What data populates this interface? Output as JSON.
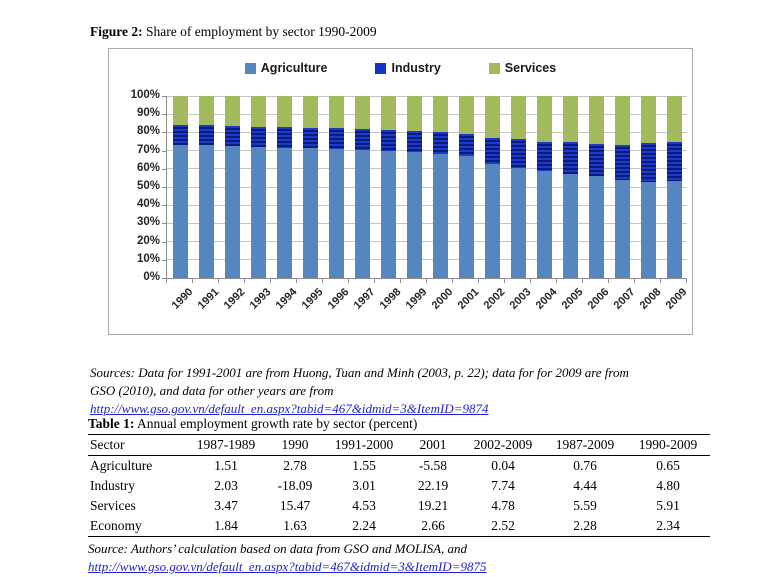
{
  "figure": {
    "caption_label": "Figure 2:",
    "caption_text": " Share of employment by sector 1990-2009"
  },
  "chart_data": {
    "type": "bar",
    "stacked": true,
    "title": "Share of employment by sector 1990-2009",
    "xlabel": "",
    "ylabel": "",
    "ylim": [
      0,
      100
    ],
    "grid": true,
    "legend_position": "top",
    "y_ticks": [
      "100%",
      "90%",
      "80%",
      "70%",
      "60%",
      "50%",
      "40%",
      "30%",
      "20%",
      "10%",
      "0%"
    ],
    "categories": [
      "1990",
      "1991",
      "1992",
      "1993",
      "1994",
      "1995",
      "1996",
      "1997",
      "1998",
      "1999",
      "2000",
      "2001",
      "2002",
      "2003",
      "2004",
      "2005",
      "2006",
      "2007",
      "2008",
      "2009"
    ],
    "series": [
      {
        "name": "Agriculture",
        "color": "#5686c0",
        "values": [
          73.0,
          72.8,
          72.6,
          72.1,
          71.6,
          71.2,
          70.8,
          70.3,
          69.8,
          69.0,
          68.0,
          67.0,
          62.5,
          60.5,
          59.0,
          57.0,
          56.0,
          54.0,
          52.5,
          53.5
        ]
      },
      {
        "name": "Industry",
        "color": "#1532c8",
        "values": [
          11.0,
          11.0,
          11.0,
          11.1,
          11.4,
          11.3,
          11.4,
          11.4,
          11.4,
          11.5,
          12.0,
          12.0,
          14.5,
          15.9,
          16.0,
          17.7,
          17.6,
          19.3,
          21.7,
          21.2
        ]
      },
      {
        "name": "Services",
        "color": "#a2ba5c",
        "values": [
          16.0,
          16.2,
          16.4,
          16.8,
          17.0,
          17.5,
          17.8,
          18.3,
          18.8,
          19.5,
          20.0,
          21.0,
          23.0,
          23.6,
          25.0,
          25.3,
          26.4,
          26.7,
          25.8,
          25.3
        ]
      }
    ]
  },
  "figure_sources": {
    "line1": "Sources: Data for 1991-2001 are  from Huong, Tuan and Minh (2003, p. 22); data for for 2009 are from",
    "line2": "GSO (2010), and data for other years are from",
    "link": "http://www.gso.gov.vn/default_en.aspx?tabid=467&idmid=3&ItemID=9874"
  },
  "table": {
    "caption_label": "Table 1:",
    "caption_text": " Annual employment growth rate by sector (percent)",
    "headers": [
      "Sector",
      "1987-1989",
      "1990",
      "1991-2000",
      "2001",
      "2002-2009",
      "1987-2009",
      "1990-2009"
    ],
    "rows": [
      [
        "Agriculture",
        "1.51",
        "2.78",
        "1.55",
        "-5.58",
        "0.04",
        "0.76",
        "0.65"
      ],
      [
        "Industry",
        "2.03",
        "-18.09",
        "3.01",
        "22.19",
        "7.74",
        "4.44",
        "4.80"
      ],
      [
        "Services",
        "3.47",
        "15.47",
        "4.53",
        "19.21",
        "4.78",
        "5.59",
        "5.91"
      ],
      [
        "Economy",
        "1.84",
        "1.63",
        "2.24",
        "2.66",
        "2.52",
        "2.28",
        "2.34"
      ]
    ],
    "source_text": "Source: Authors’ calculation based on data from GSO and MOLISA, and",
    "source_link": "http://www.gso.gov.vn/default_en.aspx?tabid=467&idmid=3&ItemID=9875"
  }
}
